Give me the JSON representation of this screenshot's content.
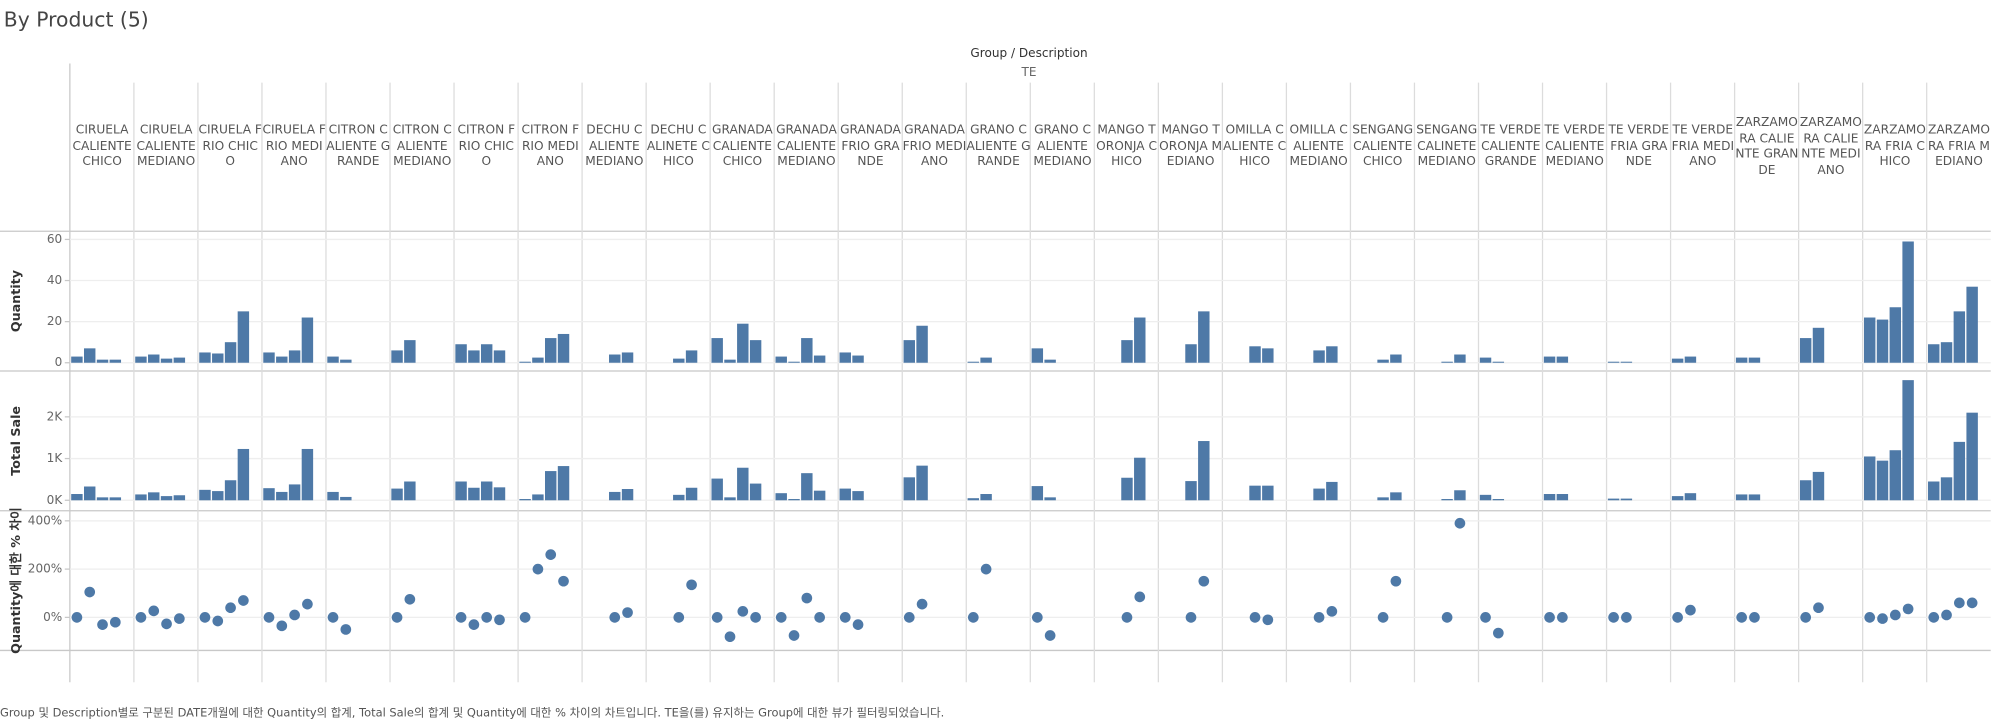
{
  "title": "By Product (5)",
  "chart_data": {
    "type": "bar",
    "header": "Group / Description",
    "group": "TE",
    "color": "#4e79a7",
    "columns": [
      "CIRUELA CALIENTE CHICO",
      "CIRUELA CALIENTE MEDIANO",
      "CIRUELA FRIO CHICO",
      "CIRUELA FRIO MEDIANO",
      "CITRON CALIENTE GRANDE",
      "CITRON CALIENTE MEDIANO",
      "CITRON FRIO CHICO",
      "CITRON FRIO MEDIANO",
      "DECHU CALIENTE MEDIANO",
      "DECHU CALINETE CHICO",
      "GRANADA CALIENTE CHICO",
      "GRANADA CALIENTE MEDIANO",
      "GRANADA FRIO GRANDE",
      "GRANADA FRIO MEDIANO",
      "GRANO CALIENTE GRANDE",
      "GRANO CALIENTE MEDIANO",
      "MANGO TORONJA CHICO",
      "MANGO TORONJA MEDIANO",
      "OMILLA CALIENTE CHICO",
      "OMILLA CALIENTE MEDIANO",
      "SENGANG CALIENTE CHICO",
      "SENGANG CALINETE MEDIANO",
      "TE VERDE CALIENTE GRANDE",
      "TE VERDE CALIENTE MEDIANO",
      "TE VERDE FRIA GRANDE",
      "TE VERDE FRIA MEDIANO",
      "ZARZAMORA CALIENTE GRANDE",
      "ZARZAMORA CALIENTE MEDIANO",
      "ZARZAMORA FRIA CHICO",
      "ZARZAMORA FRIA MEDIANO"
    ],
    "panes": [
      {
        "type": "bar",
        "axis_title": "Quantity",
        "ylim": [
          -4,
          64
        ],
        "yticks": [
          0,
          20,
          40,
          60
        ],
        "values": [
          [
            3,
            7,
            1.5,
            1.5
          ],
          [
            3,
            4,
            2,
            2.5
          ],
          [
            5,
            4.5,
            10,
            25
          ],
          [
            5,
            3,
            6,
            22
          ],
          [
            3,
            1.5,
            null,
            null
          ],
          [
            6,
            11,
            null,
            null
          ],
          [
            9,
            6,
            9,
            6
          ],
          [
            0.5,
            2.5,
            12,
            14
          ],
          [
            null,
            null,
            4,
            5
          ],
          [
            null,
            null,
            2,
            6
          ],
          [
            12,
            1.5,
            19,
            11
          ],
          [
            3,
            0.5,
            12,
            3.5
          ],
          [
            5,
            3.5,
            null,
            null
          ],
          [
            11,
            18,
            null,
            null
          ],
          [
            0.5,
            2.5,
            null,
            null
          ],
          [
            7,
            1.5,
            null,
            null
          ],
          [
            null,
            null,
            11,
            22
          ],
          [
            null,
            null,
            9,
            25
          ],
          [
            null,
            null,
            8,
            7
          ],
          [
            null,
            null,
            6,
            8
          ],
          [
            null,
            null,
            1.5,
            4
          ],
          [
            null,
            null,
            0.5,
            4
          ],
          [
            2.5,
            0.5,
            null,
            null
          ],
          [
            3,
            3,
            null,
            null
          ],
          [
            0.5,
            0.5,
            null,
            null
          ],
          [
            2,
            3,
            null,
            null
          ],
          [
            2.5,
            2.5,
            null,
            null
          ],
          [
            12,
            17,
            null,
            null
          ],
          [
            22,
            21,
            27,
            59
          ],
          [
            9,
            10,
            25,
            37
          ]
        ]
      },
      {
        "type": "bar",
        "axis_title": "Total Sale",
        "ylim": [
          -250,
          3100
        ],
        "yticks": [
          {
            "value": 0,
            "label": "0K"
          },
          {
            "value": 1000,
            "label": "1K"
          },
          {
            "value": 2000,
            "label": "2K"
          }
        ],
        "values": [
          [
            150,
            330,
            70,
            70
          ],
          [
            140,
            190,
            100,
            120
          ],
          [
            250,
            220,
            480,
            1230
          ],
          [
            290,
            200,
            380,
            1230
          ],
          [
            200,
            80,
            null,
            null
          ],
          [
            280,
            450,
            null,
            null
          ],
          [
            450,
            300,
            450,
            310
          ],
          [
            30,
            140,
            700,
            820
          ],
          [
            null,
            null,
            200,
            270
          ],
          [
            null,
            null,
            130,
            300
          ],
          [
            520,
            70,
            780,
            400
          ],
          [
            170,
            30,
            650,
            230
          ],
          [
            280,
            220,
            null,
            null
          ],
          [
            550,
            830,
            null,
            null
          ],
          [
            50,
            150,
            null,
            null
          ],
          [
            340,
            70,
            null,
            null
          ],
          [
            null,
            null,
            540,
            1020
          ],
          [
            null,
            null,
            460,
            1420
          ],
          [
            null,
            null,
            350,
            350
          ],
          [
            null,
            null,
            280,
            440
          ],
          [
            null,
            null,
            70,
            190
          ],
          [
            null,
            null,
            30,
            240
          ],
          [
            130,
            30,
            null,
            null
          ],
          [
            150,
            150,
            null,
            null
          ],
          [
            40,
            40,
            null,
            null
          ],
          [
            100,
            170,
            null,
            null
          ],
          [
            140,
            140,
            null,
            null
          ],
          [
            480,
            680,
            null,
            null
          ],
          [
            1050,
            950,
            1200,
            2880
          ],
          [
            450,
            550,
            1400,
            2100
          ]
        ]
      },
      {
        "type": "scatter",
        "axis_title": "Quantity에 대한 % 차이",
        "ylim": [
          -137,
          442
        ],
        "yticks": [
          {
            "value": 0,
            "label": "0%"
          },
          {
            "value": 200,
            "label": "200%"
          },
          {
            "value": 400,
            "label": "400%"
          }
        ],
        "values": [
          [
            0,
            105,
            -30,
            -20
          ],
          [
            0,
            27,
            -27,
            -5
          ],
          [
            0,
            -15,
            40,
            70
          ],
          [
            0,
            -35,
            10,
            55
          ],
          [
            0,
            -50,
            null,
            null
          ],
          [
            0,
            75,
            null,
            null
          ],
          [
            0,
            -30,
            0,
            -10
          ],
          [
            0,
            200,
            260,
            150
          ],
          [
            null,
            null,
            0,
            20
          ],
          [
            null,
            null,
            0,
            135
          ],
          [
            0,
            -80,
            25,
            0
          ],
          [
            0,
            -75,
            80,
            0
          ],
          [
            0,
            -30,
            null,
            null
          ],
          [
            0,
            55,
            null,
            null
          ],
          [
            0,
            200,
            null,
            null
          ],
          [
            0,
            -75,
            null,
            null
          ],
          [
            null,
            null,
            0,
            85
          ],
          [
            null,
            null,
            0,
            150
          ],
          [
            null,
            null,
            0,
            -10
          ],
          [
            null,
            null,
            0,
            25
          ],
          [
            null,
            null,
            0,
            150
          ],
          [
            null,
            null,
            0,
            390
          ],
          [
            0,
            -65,
            null,
            null
          ],
          [
            0,
            0,
            null,
            null
          ],
          [
            0,
            0,
            null,
            null
          ],
          [
            0,
            30,
            null,
            null
          ],
          [
            0,
            0,
            null,
            null
          ],
          [
            0,
            40,
            null,
            null
          ],
          [
            0,
            -5,
            10,
            35
          ],
          [
            0,
            10,
            60,
            60
          ]
        ]
      }
    ]
  },
  "footer": "Group 및 Description별로 구분된 DATE개월에 대한 Quantity의 합계, Total Sale의 합계 및 Quantity에 대한 % 차이의 차트입니다. TE을(를) 유지하는 Group에 대한 뷰가 필터링되었습니다."
}
